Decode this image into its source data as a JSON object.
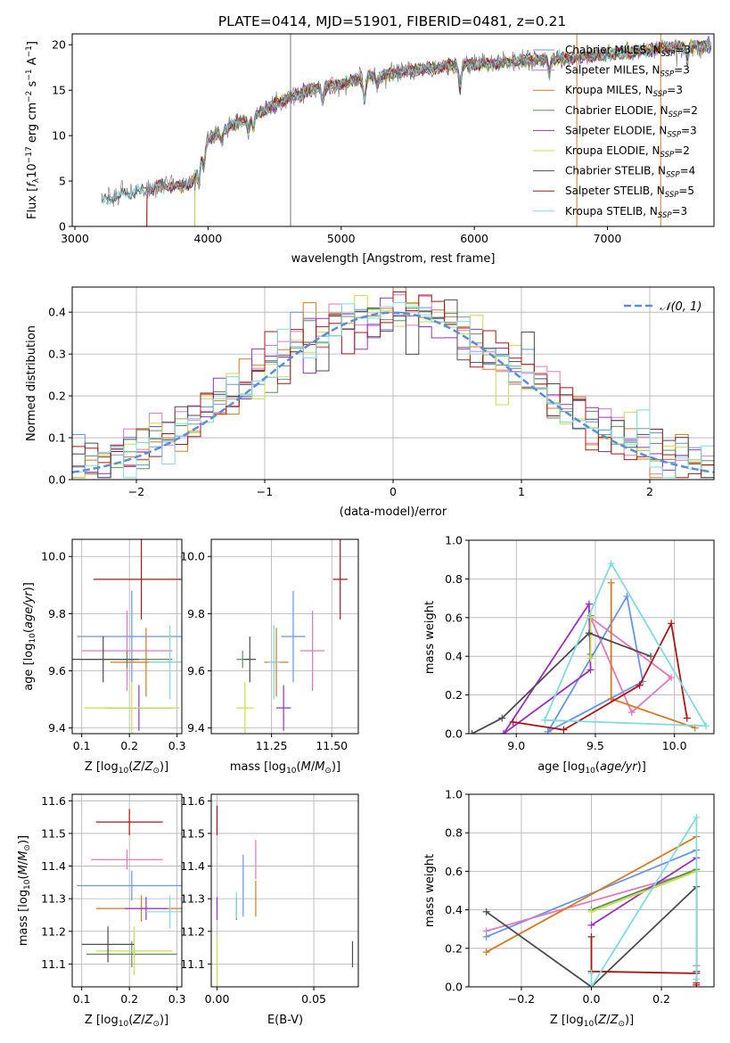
{
  "figure_title": "PLATE=0414, MJD=51901, FIBERID=0481, z=0.21",
  "model_colors": {
    "Chabrier MILES": "#6495ed",
    "Salpeter MILES": "#e377c2",
    "Kroupa MILES": "#d97a1f",
    "Chabrier ELODIE": "#5f8f58",
    "Salpeter ELODIE": "#9b30c0",
    "Kroupa ELODIE": "#c6e04a",
    "Chabrier STELIB": "#4d4d4d",
    "Salpeter STELIB": "#b01515",
    "Kroupa STELIB": "#7fdbe0"
  },
  "chart_data": [
    {
      "id": "spectrum",
      "type": "line",
      "title": "PLATE=0414, MJD=51901, FIBERID=0481, z=0.21",
      "xlabel": "wavelength [Angstrom, rest frame]",
      "ylabel": "Flux [f_λ10^-17 erg cm^-2 s^-1 A^-1]",
      "xlim": [
        2980,
        7800
      ],
      "ylim": [
        0,
        21.2
      ],
      "xticks": [
        3000,
        4000,
        5000,
        6000,
        7000
      ],
      "yticks": [
        0,
        5,
        10,
        15,
        20
      ],
      "grid": false,
      "legend_position": "bottom-right",
      "legend": [
        {
          "name": "Chabrier MILES, N_SSP=3",
          "label": "Chabrier MILES, N",
          "sub": "SSP",
          "tail": "=3",
          "color": "#6495ed"
        },
        {
          "name": "Salpeter MILES, N_SSP=3",
          "label": "Salpeter MILES, N",
          "sub": "SSP",
          "tail": "=3",
          "color": "#e377c2"
        },
        {
          "name": "Kroupa MILES, N_SSP=3",
          "label": "Kroupa MILES, N",
          "sub": "SSP",
          "tail": "=3",
          "color": "#d97a1f"
        },
        {
          "name": "Chabrier ELODIE, N_SSP=2",
          "label": "Chabrier ELODIE, N",
          "sub": "SSP",
          "tail": "=2",
          "color": "#5f8f58"
        },
        {
          "name": "Salpeter ELODIE, N_SSP=3",
          "label": "Salpeter ELODIE, N",
          "sub": "SSP",
          "tail": "=3",
          "color": "#9b30c0"
        },
        {
          "name": "Kroupa ELODIE, N_SSP=2",
          "label": "Kroupa ELODIE, N",
          "sub": "SSP",
          "tail": "=2",
          "color": "#c6e04a"
        },
        {
          "name": "Chabrier STELIB, N_SSP=4",
          "label": "Chabrier STELIB, N",
          "sub": "SSP",
          "tail": "=4",
          "color": "#4d4d4d"
        },
        {
          "name": "Salpeter STELIB, N_SSP=5",
          "label": "Salpeter STELIB, N",
          "sub": "SSP",
          "tail": "=5",
          "color": "#b01515"
        },
        {
          "name": "Kroupa STELIB, N_SSP=3",
          "label": "Kroupa STELIB, N",
          "sub": "SSP",
          "tail": "=3",
          "color": "#7fdbe0"
        }
      ],
      "data_color": "#808080",
      "continuum_nodes": [
        [
          3200,
          2.8
        ],
        [
          3350,
          3.5
        ],
        [
          3500,
          4.0
        ],
        [
          3600,
          4.3
        ],
        [
          3700,
          4.6
        ],
        [
          3800,
          4.3
        ],
        [
          3900,
          5.2
        ],
        [
          3950,
          8.0
        ],
        [
          4000,
          9.6
        ],
        [
          4100,
          10.5
        ],
        [
          4200,
          11.3
        ],
        [
          4400,
          12.6
        ],
        [
          4600,
          14.2
        ],
        [
          4800,
          15.2
        ],
        [
          5000,
          15.7
        ],
        [
          5200,
          16.5
        ],
        [
          5400,
          16.8
        ],
        [
          5600,
          17.3
        ],
        [
          5800,
          17.6
        ],
        [
          6000,
          17.9
        ],
        [
          6200,
          18.0
        ],
        [
          6400,
          18.3
        ],
        [
          6600,
          18.4
        ],
        [
          6800,
          18.7
        ],
        [
          7000,
          18.9
        ],
        [
          7200,
          19.2
        ],
        [
          7400,
          19.6
        ],
        [
          7600,
          19.9
        ]
      ],
      "absorption_lines": [
        [
          3934,
          2.5
        ],
        [
          3968,
          2.0
        ],
        [
          4102,
          1.2
        ],
        [
          4304,
          1.5
        ],
        [
          4340,
          1.5
        ],
        [
          4861,
          1.5
        ],
        [
          5175,
          2.5
        ],
        [
          5270,
          1.0
        ],
        [
          5893,
          2.5
        ],
        [
          6563,
          1.5
        ],
        [
          7600,
          1.5
        ]
      ],
      "spikes": [
        [
          4620,
          21.2
        ],
        [
          6770,
          21.2
        ],
        [
          7400,
          21.2
        ]
      ],
      "model_start": {
        "Chabrier MILES": 3540,
        "Salpeter MILES": 3540,
        "Kroupa MILES": 3540,
        "Chabrier ELODIE": 3900,
        "Salpeter ELODIE": 3900,
        "Kroupa ELODIE": 3900,
        "Chabrier STELIB": 3200,
        "Salpeter STELIB": 3540,
        "Kroupa STELIB": 3200
      }
    },
    {
      "id": "residuals",
      "type": "histogram",
      "xlabel": "(data-model)/error",
      "ylabel": "Normed distribution",
      "xlim": [
        -2.5,
        2.5
      ],
      "ylim": [
        0,
        0.46
      ],
      "xticks": [
        -2,
        -1,
        0,
        1,
        2
      ],
      "yticks": [
        0.0,
        0.1,
        0.2,
        0.3,
        0.4
      ],
      "grid": true,
      "bin_edges_range": [
        -2.5,
        2.5
      ],
      "n_bins": 50,
      "reference_curve": {
        "name": "𝒩(0, 1)",
        "mu": 0,
        "sigma": 1,
        "color": "#5a8fd6"
      },
      "legend_position": "top-right"
    },
    {
      "id": "age_vs_Z",
      "type": "scatter",
      "xlabel": "Z [log10(Z/Z⊙)]",
      "ylabel": "age [log10(age/yr)]",
      "xlim": [
        0.08,
        0.31
      ],
      "ylim": [
        9.38,
        10.06
      ],
      "xticks": [
        0.1,
        0.2,
        0.3
      ],
      "yticks": [
        9.4,
        9.6,
        9.8,
        10.0
      ],
      "grid": true,
      "points": [
        {
          "model": "Chabrier MILES",
          "x": 0.205,
          "y": 9.72,
          "xerr": 0.115,
          "yerr": 0.16
        },
        {
          "model": "Salpeter MILES",
          "x": 0.195,
          "y": 9.67,
          "xerr": 0.095,
          "yerr": 0.14
        },
        {
          "model": "Kroupa MILES",
          "x": 0.235,
          "y": 9.63,
          "xerr": 0.075,
          "yerr": 0.12
        },
        {
          "model": "Chabrier ELODIE",
          "x": 0.195,
          "y": 9.64,
          "xerr": 0.095,
          "yerr": 0.03
        },
        {
          "model": "Salpeter ELODIE",
          "x": 0.22,
          "y": 9.47,
          "xerr": 0.07,
          "yerr": 0.08
        },
        {
          "model": "Kroupa ELODIE",
          "x": 0.205,
          "y": 9.47,
          "xerr": 0.1,
          "yerr": 0.09
        },
        {
          "model": "Chabrier STELIB",
          "x": 0.145,
          "y": 9.64,
          "xerr": 0.075,
          "yerr": 0.08
        },
        {
          "model": "Salpeter STELIB",
          "x": 0.225,
          "y": 9.92,
          "xerr": 0.1,
          "yerr": 0.14
        },
        {
          "model": "Kroupa STELIB",
          "x": 0.285,
          "y": 9.63,
          "xerr": 0.045,
          "yerr": 0.13
        }
      ]
    },
    {
      "id": "age_vs_mass",
      "type": "scatter",
      "xlabel": "mass [log10(M/M⊙)]",
      "ylabel": "",
      "xlim": [
        11.0,
        11.61
      ],
      "ylim": [
        9.38,
        10.06
      ],
      "xticks": [
        11.25,
        11.5
      ],
      "yticks": [
        9.4,
        9.6,
        9.8,
        10.0
      ],
      "grid": true,
      "points": [
        {
          "model": "Chabrier MILES",
          "x": 11.34,
          "y": 9.72,
          "xerr": 0.05,
          "yerr": 0.16
        },
        {
          "model": "Salpeter MILES",
          "x": 11.42,
          "y": 9.67,
          "xerr": 0.05,
          "yerr": 0.14
        },
        {
          "model": "Kroupa MILES",
          "x": 11.27,
          "y": 9.63,
          "xerr": 0.05,
          "yerr": 0.12
        },
        {
          "model": "Chabrier ELODIE",
          "x": 11.13,
          "y": 9.64,
          "xerr": 0.025,
          "yerr": 0.03
        },
        {
          "model": "Salpeter ELODIE",
          "x": 11.3,
          "y": 9.47,
          "xerr": 0.03,
          "yerr": 0.08
        },
        {
          "model": "Kroupa ELODIE",
          "x": 11.14,
          "y": 9.47,
          "xerr": 0.035,
          "yerr": 0.09
        },
        {
          "model": "Chabrier STELIB",
          "x": 11.16,
          "y": 9.64,
          "xerr": 0.025,
          "yerr": 0.08
        },
        {
          "model": "Salpeter STELIB",
          "x": 11.535,
          "y": 9.92,
          "xerr": 0.03,
          "yerr": 0.14
        },
        {
          "model": "Kroupa STELIB",
          "x": 11.26,
          "y": 9.63,
          "xerr": 0.025,
          "yerr": 0.13
        }
      ]
    },
    {
      "id": "weight_vs_age",
      "type": "line",
      "xlabel": "age [log10(age/yr)]",
      "ylabel": "mass weight",
      "xlim": [
        8.7,
        10.25
      ],
      "ylim": [
        0,
        1.0
      ],
      "xticks": [
        9.0,
        9.5,
        10.0
      ],
      "yticks": [
        0.0,
        0.2,
        0.4,
        0.6,
        0.8,
        1.0
      ],
      "grid": true,
      "series": [
        {
          "model": "Chabrier MILES",
          "points": [
            [
              9.2,
              0.01
            ],
            [
              9.7,
              0.71
            ],
            [
              9.8,
              0.27
            ],
            [
              9.2,
              0.01
            ]
          ]
        },
        {
          "model": "Salpeter MILES",
          "points": [
            [
              9.47,
              0.6
            ],
            [
              9.73,
              0.11
            ],
            [
              9.98,
              0.29
            ],
            [
              9.47,
              0.6
            ]
          ]
        },
        {
          "model": "Kroupa MILES",
          "points": [
            [
              9.6,
              0.78
            ],
            [
              9.6,
              0.18
            ],
            [
              10.13,
              0.03
            ],
            [
              9.6,
              0.18
            ]
          ]
        },
        {
          "model": "Chabrier ELODIE",
          "points": [
            [
              9.47,
              0.41
            ],
            [
              9.47,
              0.61
            ]
          ]
        },
        {
          "model": "Salpeter ELODIE",
          "points": [
            [
              8.92,
              0.0
            ],
            [
              9.46,
              0.67
            ],
            [
              9.47,
              0.33
            ],
            [
              8.92,
              0.0
            ]
          ]
        },
        {
          "model": "Kroupa ELODIE",
          "points": [
            [
              9.47,
              0.39
            ],
            [
              9.47,
              0.6
            ]
          ]
        },
        {
          "model": "Chabrier STELIB",
          "points": [
            [
              8.72,
              0.0
            ],
            [
              8.91,
              0.08
            ],
            [
              9.46,
              0.52
            ],
            [
              9.85,
              0.4
            ]
          ]
        },
        {
          "model": "Salpeter STELIB",
          "points": [
            [
              8.98,
              0.06
            ],
            [
              9.3,
              0.02
            ],
            [
              9.78,
              0.25
            ],
            [
              9.98,
              0.57
            ],
            [
              10.08,
              0.08
            ]
          ]
        },
        {
          "model": "Kroupa STELIB",
          "points": [
            [
              9.18,
              0.07
            ],
            [
              9.6,
              0.88
            ],
            [
              10.2,
              0.04
            ],
            [
              9.18,
              0.07
            ]
          ]
        }
      ]
    },
    {
      "id": "mass_vs_Z",
      "type": "scatter",
      "xlabel": "Z [log10(Z/Z⊙)]",
      "ylabel": "mass [log10(M/M⊙)]",
      "xlim": [
        0.08,
        0.31
      ],
      "ylim": [
        11.03,
        11.62
      ],
      "xticks": [
        0.1,
        0.2,
        0.3
      ],
      "yticks": [
        11.1,
        11.2,
        11.3,
        11.4,
        11.5,
        11.6
      ],
      "grid": true,
      "points": [
        {
          "model": "Chabrier MILES",
          "x": 0.205,
          "y": 11.34,
          "xerr": 0.115,
          "yerr": 0.045
        },
        {
          "model": "Salpeter MILES",
          "x": 0.195,
          "y": 11.42,
          "xerr": 0.075,
          "yerr": 0.03
        },
        {
          "model": "Kroupa MILES",
          "x": 0.225,
          "y": 11.27,
          "xerr": 0.095,
          "yerr": 0.04
        },
        {
          "model": "Chabrier ELODIE",
          "x": 0.205,
          "y": 11.13,
          "xerr": 0.095,
          "yerr": 0.04
        },
        {
          "model": "Salpeter ELODIE",
          "x": 0.235,
          "y": 11.27,
          "xerr": 0.045,
          "yerr": 0.035
        },
        {
          "model": "Kroupa ELODIE",
          "x": 0.21,
          "y": 11.14,
          "xerr": 0.08,
          "yerr": 0.075
        },
        {
          "model": "Chabrier STELIB",
          "x": 0.155,
          "y": 11.16,
          "xerr": 0.055,
          "yerr": 0.055
        },
        {
          "model": "Salpeter STELIB",
          "x": 0.2,
          "y": 11.535,
          "xerr": 0.07,
          "yerr": 0.04
        },
        {
          "model": "Kroupa STELIB",
          "x": 0.285,
          "y": 11.26,
          "xerr": 0.05,
          "yerr": 0.05
        }
      ]
    },
    {
      "id": "mass_vs_EBV",
      "type": "scatter",
      "xlabel": "E(B-V)",
      "ylabel": "",
      "xlim": [
        -0.003,
        0.073
      ],
      "ylim": [
        11.03,
        11.62
      ],
      "xticks": [
        0.0,
        0.05
      ],
      "yticks": [
        11.1,
        11.2,
        11.3,
        11.4,
        11.5,
        11.6
      ],
      "grid": true,
      "points": [
        {
          "model": "Chabrier MILES",
          "x": 0.0135,
          "y": 11.34,
          "xerr": 0,
          "yerr": 0.095
        },
        {
          "model": "Salpeter MILES",
          "x": 0.02,
          "y": 11.42,
          "xerr": 0,
          "yerr": 0.06
        },
        {
          "model": "Kroupa MILES",
          "x": 0.02,
          "y": 11.3,
          "xerr": 0,
          "yerr": 0.055
        },
        {
          "model": "Chabrier ELODIE",
          "x": 0.01,
          "y": 11.27,
          "xerr": 0,
          "yerr": 0.035
        },
        {
          "model": "Salpeter ELODIE",
          "x": 0.0,
          "y": 11.27,
          "xerr": 0,
          "yerr": 0.035
        },
        {
          "model": "Kroupa ELODIE",
          "x": 0.0,
          "y": 11.11,
          "xerr": 0,
          "yerr": 0.08
        },
        {
          "model": "Chabrier STELIB",
          "x": 0.07,
          "y": 11.13,
          "xerr": 0,
          "yerr": 0.04
        },
        {
          "model": "Salpeter STELIB",
          "x": 0.0,
          "y": 11.54,
          "xerr": 0,
          "yerr": 0.045
        },
        {
          "model": "Kroupa STELIB",
          "x": 0.01,
          "y": 11.28,
          "xerr": 0,
          "yerr": 0.04
        }
      ]
    },
    {
      "id": "weight_vs_Z",
      "type": "line",
      "xlabel": "Z [log10(Z/Z⊙)]",
      "ylabel": "mass weight",
      "xlim": [
        -0.35,
        0.35
      ],
      "ylim": [
        0,
        1.0
      ],
      "xticks": [
        -0.2,
        0.0,
        0.2
      ],
      "yticks": [
        0.0,
        0.2,
        0.4,
        0.6,
        0.8,
        1.0
      ],
      "grid": true,
      "series": [
        {
          "model": "Chabrier MILES",
          "points": [
            [
              -0.3,
              0.26
            ],
            [
              0.3,
              0.71
            ]
          ]
        },
        {
          "model": "Salpeter MILES",
          "points": [
            [
              -0.3,
              0.29
            ],
            [
              0.3,
              0.6
            ],
            [
              0.3,
              0.11
            ]
          ]
        },
        {
          "model": "Kroupa MILES",
          "points": [
            [
              -0.3,
              0.18
            ],
            [
              0.3,
              0.78
            ]
          ]
        },
        {
          "model": "Chabrier ELODIE",
          "points": [
            [
              0.0,
              0.4
            ],
            [
              0.3,
              0.61
            ]
          ]
        },
        {
          "model": "Salpeter ELODIE",
          "points": [
            [
              0.0,
              0.32
            ],
            [
              0.3,
              0.67
            ]
          ]
        },
        {
          "model": "Kroupa ELODIE",
          "points": [
            [
              0.0,
              0.39
            ],
            [
              0.3,
              0.6
            ]
          ]
        },
        {
          "model": "Chabrier STELIB",
          "points": [
            [
              -0.3,
              0.39
            ],
            [
              0.0,
              0.0
            ],
            [
              0.3,
              0.52
            ],
            [
              0.3,
              0.08
            ]
          ]
        },
        {
          "model": "Salpeter STELIB",
          "points": [
            [
              0.0,
              0.26
            ],
            [
              0.0,
              0.08
            ],
            [
              0.3,
              0.07
            ],
            [
              0.3,
              0.02
            ],
            [
              0.3,
              0.01
            ]
          ]
        },
        {
          "model": "Kroupa STELIB",
          "points": [
            [
              0.0,
              0.07
            ],
            [
              0.0,
              0.0
            ],
            [
              0.3,
              0.88
            ],
            [
              0.3,
              0.04
            ]
          ]
        }
      ]
    }
  ]
}
